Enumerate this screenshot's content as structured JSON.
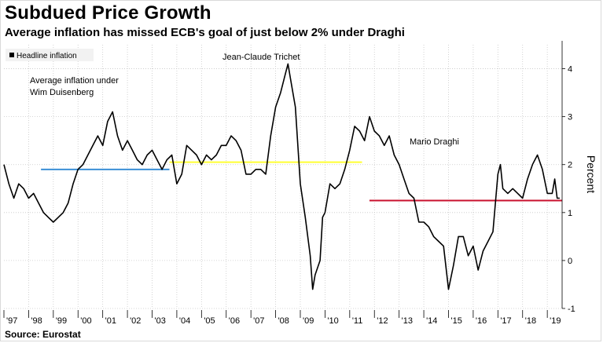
{
  "header": {
    "title": "Subdued Price Growth",
    "subtitle": "Average inflation has missed ECB's goal of just below 2% under Draghi"
  },
  "footer": {
    "source": "Source: Eurostat"
  },
  "chart_data": {
    "type": "line",
    "ylabel": "Percent",
    "ylim": [
      -1,
      4.5
    ],
    "yticks": [
      -1,
      0,
      1,
      2,
      3,
      4
    ],
    "xlim": [
      1997.0,
      2019.6
    ],
    "xtick_labels": [
      "'97",
      "'98",
      "'99",
      "'00",
      "'01",
      "'02",
      "'03",
      "'04",
      "'05",
      "'06",
      "'07",
      "'08",
      "'09",
      "'10",
      "'11",
      "'12",
      "'13",
      "'14",
      "'15",
      "'16",
      "'17",
      "'18",
      "'19"
    ],
    "legend": {
      "label": "Headline inflation",
      "position": "top-left"
    },
    "grid": {
      "horizontal": true,
      "vertical": true,
      "style": "dotted"
    },
    "series": [
      {
        "name": "Headline inflation",
        "color": "#000000",
        "points": [
          [
            1997.0,
            2.0
          ],
          [
            1997.2,
            1.6
          ],
          [
            1997.4,
            1.3
          ],
          [
            1997.6,
            1.6
          ],
          [
            1997.8,
            1.5
          ],
          [
            1998.0,
            1.3
          ],
          [
            1998.2,
            1.4
          ],
          [
            1998.4,
            1.2
          ],
          [
            1998.6,
            1.0
          ],
          [
            1998.8,
            0.9
          ],
          [
            1999.0,
            0.8
          ],
          [
            1999.2,
            0.9
          ],
          [
            1999.4,
            1.0
          ],
          [
            1999.6,
            1.2
          ],
          [
            1999.8,
            1.6
          ],
          [
            2000.0,
            1.9
          ],
          [
            2000.2,
            2.0
          ],
          [
            2000.4,
            2.2
          ],
          [
            2000.6,
            2.4
          ],
          [
            2000.8,
            2.6
          ],
          [
            2001.0,
            2.4
          ],
          [
            2001.2,
            2.9
          ],
          [
            2001.4,
            3.1
          ],
          [
            2001.6,
            2.6
          ],
          [
            2001.8,
            2.3
          ],
          [
            2002.0,
            2.5
          ],
          [
            2002.2,
            2.3
          ],
          [
            2002.4,
            2.1
          ],
          [
            2002.6,
            2.0
          ],
          [
            2002.8,
            2.2
          ],
          [
            2003.0,
            2.3
          ],
          [
            2003.2,
            2.1
          ],
          [
            2003.4,
            1.9
          ],
          [
            2003.6,
            2.1
          ],
          [
            2003.8,
            2.2
          ],
          [
            2004.0,
            1.6
          ],
          [
            2004.2,
            1.8
          ],
          [
            2004.4,
            2.4
          ],
          [
            2004.6,
            2.3
          ],
          [
            2004.8,
            2.2
          ],
          [
            2005.0,
            2.0
          ],
          [
            2005.2,
            2.2
          ],
          [
            2005.4,
            2.1
          ],
          [
            2005.6,
            2.2
          ],
          [
            2005.8,
            2.4
          ],
          [
            2006.0,
            2.4
          ],
          [
            2006.2,
            2.6
          ],
          [
            2006.4,
            2.5
          ],
          [
            2006.6,
            2.3
          ],
          [
            2006.8,
            1.8
          ],
          [
            2007.0,
            1.8
          ],
          [
            2007.2,
            1.9
          ],
          [
            2007.4,
            1.9
          ],
          [
            2007.6,
            1.8
          ],
          [
            2007.8,
            2.6
          ],
          [
            2008.0,
            3.2
          ],
          [
            2008.2,
            3.5
          ],
          [
            2008.4,
            3.9
          ],
          [
            2008.5,
            4.1
          ],
          [
            2008.6,
            3.8
          ],
          [
            2008.8,
            3.2
          ],
          [
            2009.0,
            1.6
          ],
          [
            2009.2,
            0.9
          ],
          [
            2009.4,
            0.1
          ],
          [
            2009.5,
            -0.6
          ],
          [
            2009.6,
            -0.3
          ],
          [
            2009.8,
            0.0
          ],
          [
            2009.9,
            0.9
          ],
          [
            2010.0,
            1.0
          ],
          [
            2010.2,
            1.6
          ],
          [
            2010.4,
            1.5
          ],
          [
            2010.6,
            1.6
          ],
          [
            2010.8,
            1.9
          ],
          [
            2011.0,
            2.3
          ],
          [
            2011.2,
            2.8
          ],
          [
            2011.4,
            2.7
          ],
          [
            2011.6,
            2.5
          ],
          [
            2011.8,
            3.0
          ],
          [
            2012.0,
            2.7
          ],
          [
            2012.2,
            2.6
          ],
          [
            2012.4,
            2.4
          ],
          [
            2012.6,
            2.6
          ],
          [
            2012.8,
            2.2
          ],
          [
            2013.0,
            2.0
          ],
          [
            2013.2,
            1.7
          ],
          [
            2013.4,
            1.4
          ],
          [
            2013.6,
            1.3
          ],
          [
            2013.8,
            0.8
          ],
          [
            2014.0,
            0.8
          ],
          [
            2014.2,
            0.7
          ],
          [
            2014.4,
            0.5
          ],
          [
            2014.6,
            0.4
          ],
          [
            2014.8,
            0.3
          ],
          [
            2015.0,
            -0.6
          ],
          [
            2015.2,
            -0.1
          ],
          [
            2015.4,
            0.5
          ],
          [
            2015.6,
            0.5
          ],
          [
            2015.8,
            0.1
          ],
          [
            2016.0,
            0.3
          ],
          [
            2016.2,
            -0.2
          ],
          [
            2016.4,
            0.2
          ],
          [
            2016.6,
            0.4
          ],
          [
            2016.8,
            0.6
          ],
          [
            2017.0,
            1.8
          ],
          [
            2017.1,
            2.0
          ],
          [
            2017.2,
            1.5
          ],
          [
            2017.4,
            1.4
          ],
          [
            2017.6,
            1.5
          ],
          [
            2017.8,
            1.4
          ],
          [
            2018.0,
            1.3
          ],
          [
            2018.2,
            1.7
          ],
          [
            2018.4,
            2.0
          ],
          [
            2018.5,
            2.1
          ],
          [
            2018.6,
            2.2
          ],
          [
            2018.8,
            1.9
          ],
          [
            2019.0,
            1.4
          ],
          [
            2019.2,
            1.4
          ],
          [
            2019.3,
            1.7
          ],
          [
            2019.4,
            1.3
          ],
          [
            2019.5,
            1.3
          ]
        ]
      }
    ],
    "reference_lines": [
      {
        "label": "Wim Duisenberg average",
        "color": "#3b8fd6",
        "x_start": 1998.5,
        "x_end": 2003.7,
        "y": 1.9
      },
      {
        "label": "Jean-Claude Trichet average",
        "color": "#ffff33",
        "x_start": 2003.7,
        "x_end": 2011.5,
        "y": 2.05
      },
      {
        "label": "Mario Draghi average",
        "color": "#c8102e",
        "x_start": 2011.8,
        "x_end": 2019.6,
        "y": 1.25
      }
    ],
    "annotations": [
      {
        "id": "duisenberg",
        "lines": [
          "Average inflation under",
          "Wim Duisenberg"
        ]
      },
      {
        "id": "trichet",
        "lines": [
          "Jean-Claude Trichet"
        ]
      },
      {
        "id": "draghi",
        "lines": [
          "Mario Draghi"
        ]
      }
    ]
  }
}
